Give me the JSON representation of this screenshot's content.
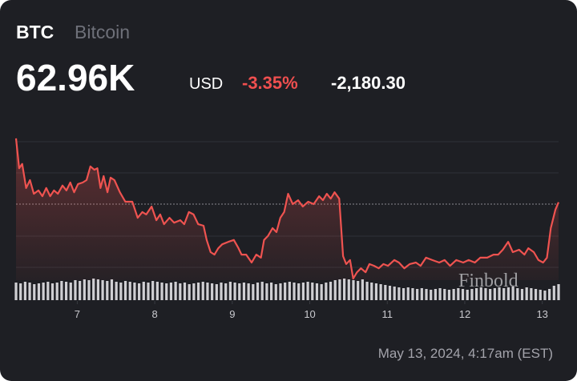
{
  "chart_data": {
    "type": "line",
    "symbol": "BTC",
    "name": "Bitcoin",
    "price": "62.96K",
    "currency": "USD",
    "change_percent": "-3.35%",
    "change": "-2,180.30",
    "timestamp": "May 13, 2024, 4:17am (EST)",
    "watermark": "Finbold",
    "color": "#ef5350",
    "xlim": [
      6.21,
      13.21
    ],
    "xticks": [
      7,
      8,
      9,
      10,
      11,
      12,
      13
    ],
    "ylim": [
      60400,
      65400
    ],
    "x": [
      6.21,
      6.25,
      6.29,
      6.34,
      6.39,
      6.44,
      6.5,
      6.55,
      6.6,
      6.65,
      6.7,
      6.75,
      6.81,
      6.86,
      6.91,
      6.96,
      7.01,
      7.07,
      7.12,
      7.17,
      7.22,
      7.26,
      7.3,
      7.34,
      7.39,
      7.43,
      7.48,
      7.55,
      7.62,
      7.71,
      7.78,
      7.84,
      7.89,
      7.96,
      8.02,
      8.07,
      8.12,
      8.19,
      8.25,
      8.33,
      8.38,
      8.44,
      8.5,
      8.56,
      8.63,
      8.67,
      8.72,
      8.77,
      8.82,
      8.87,
      8.95,
      9.02,
      9.08,
      9.12,
      9.18,
      9.25,
      9.31,
      9.37,
      9.41,
      9.46,
      9.52,
      9.57,
      9.62,
      9.67,
      9.72,
      9.78,
      9.85,
      9.91,
      9.98,
      10.05,
      10.12,
      10.17,
      10.22,
      10.27,
      10.32,
      10.38,
      10.43,
      10.47,
      10.52,
      10.56,
      10.61,
      10.66,
      10.72,
      10.77,
      10.83,
      10.89,
      10.95,
      11.01,
      11.09,
      11.15,
      11.22,
      11.29,
      11.37,
      11.43,
      11.5,
      11.58,
      11.67,
      11.74,
      11.81,
      11.89,
      11.98,
      12.05,
      12.13,
      12.2,
      12.29,
      12.37,
      12.43,
      12.49,
      12.56,
      12.62,
      12.7,
      12.77,
      12.82,
      12.89,
      12.95,
      13.01,
      13.06,
      13.11,
      13.17,
      13.21
    ],
    "values": [
      65060,
      64080,
      64220,
      63430,
      63690,
      63240,
      63350,
      63160,
      63430,
      63160,
      63350,
      63240,
      63510,
      63350,
      63610,
      63290,
      63560,
      63610,
      63690,
      64140,
      64030,
      64080,
      63430,
      63820,
      63290,
      63770,
      63690,
      63290,
      62980,
      62980,
      62450,
      62640,
      62560,
      62820,
      62370,
      62560,
      62240,
      62450,
      62290,
      62370,
      62240,
      62640,
      62560,
      62240,
      62190,
      61720,
      61320,
      61240,
      61450,
      61580,
      61660,
      61720,
      61450,
      61240,
      61240,
      60980,
      61240,
      61140,
      61720,
      61850,
      62110,
      61980,
      62450,
      62640,
      63240,
      62900,
      63030,
      62820,
      62980,
      62900,
      63160,
      63030,
      63240,
      63080,
      63290,
      63080,
      61190,
      60930,
      61060,
      60450,
      60660,
      60790,
      60660,
      60930,
      60870,
      60790,
      60930,
      60870,
      61060,
      60980,
      60790,
      60930,
      60980,
      60870,
      61140,
      61060,
      60980,
      61060,
      60870,
      61060,
      60980,
      61060,
      60980,
      61140,
      61140,
      61240,
      61240,
      61400,
      61660,
      61320,
      61400,
      61240,
      61450,
      61320,
      61060,
      60980,
      61140,
      62110,
      62720,
      62960
    ],
    "volume": {
      "color": "#cfcfd3",
      "ylim": [
        0,
        30
      ],
      "values": [
        22,
        21,
        23,
        22,
        20,
        21,
        22,
        23,
        21,
        22,
        24,
        23,
        22,
        25,
        24,
        26,
        25,
        27,
        26,
        25,
        24,
        26,
        23,
        22,
        24,
        23,
        22,
        21,
        23,
        22,
        24,
        23,
        22,
        21,
        22,
        23,
        21,
        22,
        20,
        21,
        22,
        23,
        22,
        21,
        20,
        22,
        21,
        23,
        22,
        21,
        22,
        21,
        20,
        22,
        23,
        21,
        22,
        20,
        21,
        22,
        23,
        22,
        21,
        22,
        23,
        22,
        21,
        20,
        22,
        23,
        25,
        26,
        27,
        26,
        25,
        24,
        26,
        23,
        22,
        21,
        20,
        19,
        18,
        17,
        16,
        15,
        16,
        15,
        14,
        15,
        14,
        13,
        14,
        15,
        14,
        13,
        14,
        15,
        14,
        13,
        14,
        15,
        16,
        15,
        14,
        15,
        16,
        15,
        16,
        17,
        15,
        14,
        16,
        15,
        14,
        13,
        12,
        14,
        18,
        20
      ]
    }
  }
}
